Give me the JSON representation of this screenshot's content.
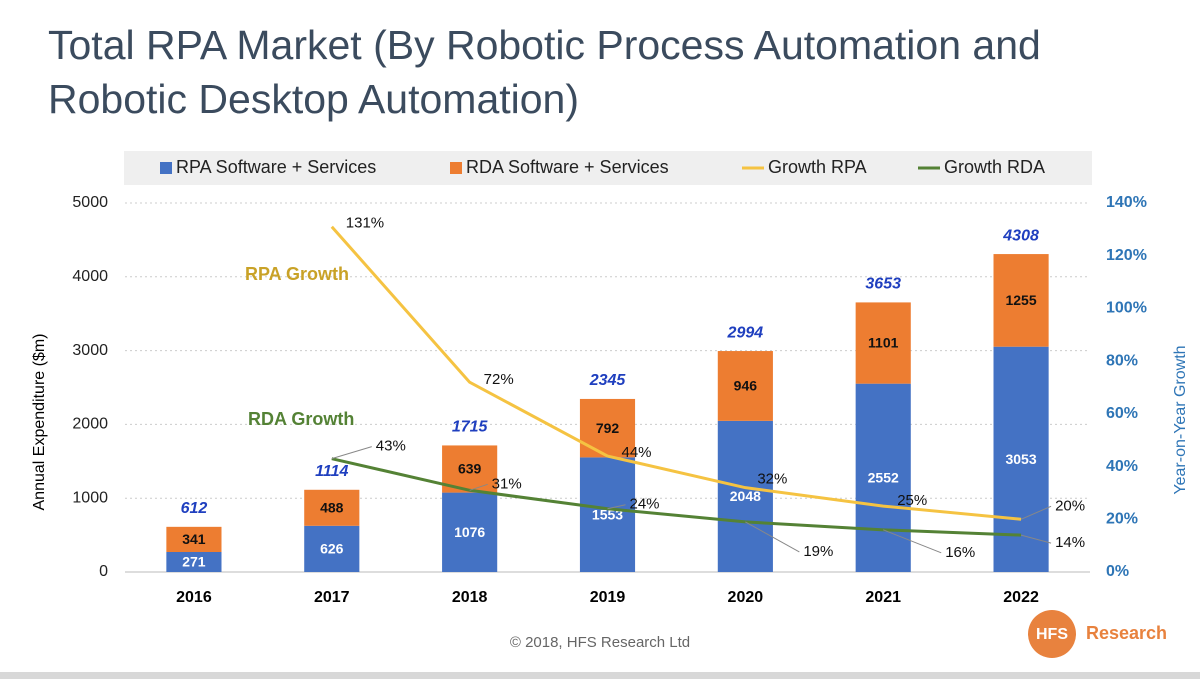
{
  "chart_data": {
    "type": "bar",
    "stacked": true,
    "title": "Total RPA Market (By Robotic Process Automation and Robotic Desktop Automation)",
    "y_label": "Annual Expenditure ($m)",
    "y2_label": "Year-on-Year Growth",
    "categories": [
      "2016",
      "2017",
      "2018",
      "2019",
      "2020",
      "2021",
      "2022"
    ],
    "series": [
      {
        "name": "RPA Software + Services",
        "type": "bar",
        "color": "#4472c4",
        "values": [
          271,
          626,
          1076,
          1553,
          2048,
          2552,
          3053
        ]
      },
      {
        "name": "RDA Software + Services",
        "type": "bar",
        "color": "#ed7d31",
        "values": [
          341,
          488,
          639,
          792,
          946,
          1101,
          1255
        ]
      },
      {
        "name": "Growth RPA",
        "type": "line",
        "axis": "y2",
        "color": "#f5c342",
        "values": [
          null,
          131,
          72,
          44,
          32,
          25,
          20
        ],
        "value_labels": [
          null,
          "131%",
          "72%",
          "44%",
          "32%",
          "25%",
          "20%"
        ]
      },
      {
        "name": "Growth RDA",
        "type": "line",
        "axis": "y2",
        "color": "#548235",
        "values": [
          null,
          43,
          31,
          24,
          19,
          16,
          14
        ],
        "value_labels": [
          null,
          "43%",
          "31%",
          "24%",
          "19%",
          "16%",
          "14%"
        ]
      }
    ],
    "totals": [
      612,
      1114,
      1715,
      2345,
      2994,
      3653,
      4308
    ],
    "annotations": [
      {
        "text": "RPA Growth",
        "color": "#c9a227"
      },
      {
        "text": "RDA Growth",
        "color": "#548235"
      }
    ],
    "ylim": [
      0,
      5000
    ],
    "yticks": [
      0,
      1000,
      2000,
      3000,
      4000,
      5000
    ],
    "y2lim": [
      0,
      140
    ],
    "y2ticks": [
      {
        "value": 0,
        "label": "0%"
      },
      {
        "value": 20,
        "label": "20%"
      },
      {
        "value": 40,
        "label": "40%"
      },
      {
        "value": 60,
        "label": "60%"
      },
      {
        "value": 80,
        "label": "80%"
      },
      {
        "value": 100,
        "label": "100%"
      },
      {
        "value": 120,
        "label": "120%"
      },
      {
        "value": 140,
        "label": "140%"
      }
    ],
    "grid": true,
    "legend": "top"
  },
  "footer": {
    "copyright": "© 2018, HFS Research Ltd",
    "logo": "HFS",
    "logo_text": "Research"
  }
}
